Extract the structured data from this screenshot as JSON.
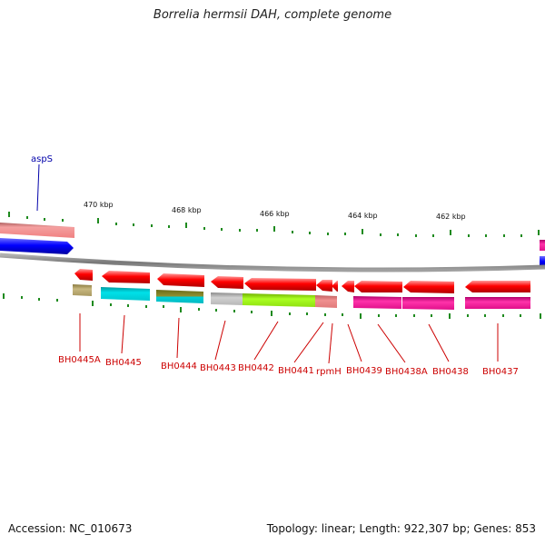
{
  "title": "Borrelia hermsii DAH, complete genome",
  "footer": {
    "accession": "Accession: NC_010673",
    "summary": "Topology: linear; Length: 922,307 bp; Genes: 853"
  },
  "scale_labels": [
    "470 kbp",
    "468 kbp",
    "466 kbp",
    "464 kbp",
    "462 kbp"
  ],
  "top_gene_label": "aspS",
  "gene_labels": [
    "BH0445A",
    "BH0445",
    "BH0444",
    "BH0443",
    "BH0442",
    "BH0441",
    "rpmH",
    "BH0439",
    "BH0438A",
    "BH0438",
    "BH0437"
  ],
  "colors": {
    "gene_red": "#ff0000",
    "label_red": "#cc0000",
    "aspS_blue": "#0000ff",
    "aspS_pink": "#f08080",
    "backbone": "#888888",
    "ticks": "#228b22"
  }
}
